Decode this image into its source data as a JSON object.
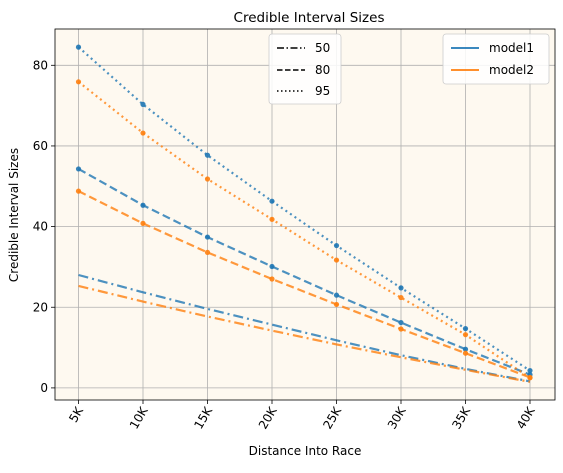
{
  "chart_data": {
    "type": "line",
    "title": "Credible Interval Sizes",
    "xlabel": "Distance Into Race",
    "ylabel": "Credible Interval Sizes",
    "categories": [
      "5K",
      "10K",
      "15K",
      "20K",
      "25K",
      "30K",
      "35K",
      "40K"
    ],
    "ylim": [
      -3,
      89
    ],
    "yticks": [
      0,
      20,
      40,
      60,
      80
    ],
    "grid": true,
    "background_color": "#fef9f0",
    "legend_styles": {
      "placement": "top-center",
      "entries": [
        {
          "label": "50",
          "dash": "dashdot"
        },
        {
          "label": "80",
          "dash": "dashed"
        },
        {
          "label": "95",
          "dash": "dotted"
        }
      ]
    },
    "legend_models": {
      "placement": "top-right",
      "entries": [
        {
          "label": "model1",
          "color": "#1f77b4"
        },
        {
          "label": "model2",
          "color": "#ff7f0e"
        }
      ]
    },
    "series": [
      {
        "model": "model1",
        "interval": "50",
        "color": "#1f77b4",
        "dash": "dashdot",
        "markers": false,
        "values": [
          28.0,
          23.7,
          19.6,
          15.7,
          11.8,
          8.1,
          4.7,
          1.6
        ]
      },
      {
        "model": "model2",
        "interval": "50",
        "color": "#ff7f0e",
        "dash": "dashdot",
        "markers": false,
        "values": [
          25.3,
          21.4,
          17.7,
          14.2,
          10.8,
          7.6,
          4.5,
          1.5
        ]
      },
      {
        "model": "model1",
        "interval": "80",
        "color": "#1f77b4",
        "dash": "dashed",
        "markers": true,
        "values": [
          54.3,
          45.3,
          37.4,
          30.1,
          23.0,
          16.2,
          9.6,
          3.3
        ]
      },
      {
        "model": "model2",
        "interval": "80",
        "color": "#ff7f0e",
        "dash": "dashed",
        "markers": true,
        "values": [
          48.8,
          40.8,
          33.6,
          27.0,
          20.7,
          14.6,
          8.6,
          2.6
        ]
      },
      {
        "model": "model1",
        "interval": "95",
        "color": "#1f77b4",
        "dash": "dotted",
        "markers": true,
        "values": [
          84.5,
          70.3,
          57.7,
          46.3,
          35.3,
          24.8,
          14.7,
          4.3
        ]
      },
      {
        "model": "model2",
        "interval": "95",
        "color": "#ff7f0e",
        "dash": "dotted",
        "markers": true,
        "values": [
          75.9,
          63.2,
          51.8,
          41.8,
          31.7,
          22.4,
          13.2,
          2.5
        ]
      }
    ]
  }
}
